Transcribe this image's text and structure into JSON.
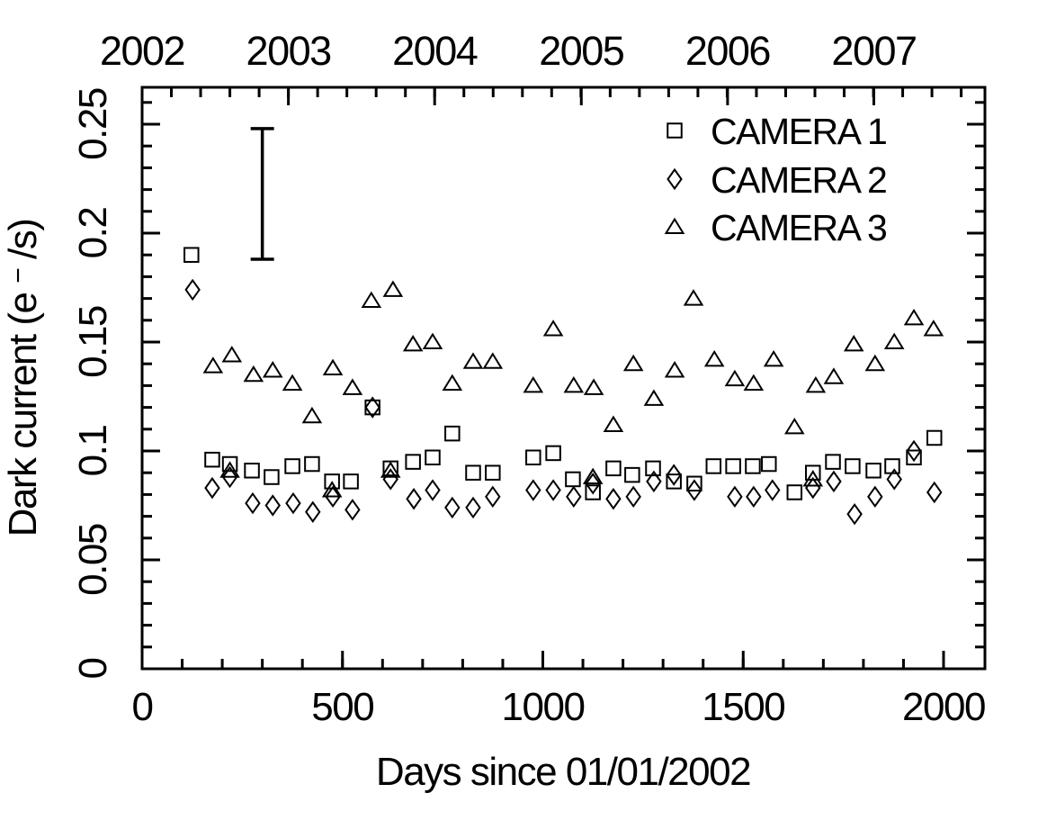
{
  "figure": {
    "background": "#ffffff",
    "foreground": "#000000"
  },
  "chart_data": {
    "type": "scatter",
    "title": "",
    "xlabel": "Days since 01/01/2002",
    "ylabel_prefix": "Dark current (e",
    "ylabel_sup": "−",
    "ylabel_suffix": "/s)",
    "xlim": [
      0,
      2103
    ],
    "ylim": [
      0,
      0.267
    ],
    "grid": false,
    "legend_position": "top-right-inside",
    "x_ticks_major": [
      {
        "value": 0,
        "label": "0"
      },
      {
        "value": 500,
        "label": "500"
      },
      {
        "value": 1000,
        "label": "1000"
      },
      {
        "value": 1500,
        "label": "1500"
      },
      {
        "value": 2000,
        "label": "2000"
      }
    ],
    "x_minor_step": 100,
    "y_ticks_major": [
      {
        "value": 0,
        "label": "0"
      },
      {
        "value": 0.05,
        "label": "0.05"
      },
      {
        "value": 0.1,
        "label": "0.1"
      },
      {
        "value": 0.15,
        "label": "0.15"
      },
      {
        "value": 0.2,
        "label": "0.2"
      },
      {
        "value": 0.25,
        "label": "0.25"
      }
    ],
    "y_minor_step": 0.01,
    "top_axis_years": [
      {
        "label": "2002",
        "day": 0
      },
      {
        "label": "2003",
        "day": 365
      },
      {
        "label": "2004",
        "day": 730
      },
      {
        "label": "2005",
        "day": 1096
      },
      {
        "label": "2006",
        "day": 1461
      },
      {
        "label": "2007",
        "day": 1826
      }
    ],
    "top_minor_step": 73,
    "error_bar": {
      "x_day": 300,
      "y_low": 0.188,
      "y_high": 0.248
    },
    "series": [
      {
        "name": "CAMERA 1",
        "marker": "square",
        "points": [
          [
            123,
            0.19
          ],
          [
            175,
            0.096
          ],
          [
            219,
            0.094
          ],
          [
            274,
            0.091
          ],
          [
            323,
            0.088
          ],
          [
            375,
            0.093
          ],
          [
            424,
            0.094
          ],
          [
            474,
            0.086
          ],
          [
            521,
            0.086
          ],
          [
            575,
            0.12
          ],
          [
            620,
            0.092
          ],
          [
            676,
            0.095
          ],
          [
            725,
            0.097
          ],
          [
            774,
            0.108
          ],
          [
            826,
            0.09
          ],
          [
            875,
            0.09
          ],
          [
            976,
            0.097
          ],
          [
            1026,
            0.099
          ],
          [
            1075,
            0.087
          ],
          [
            1125,
            0.081
          ],
          [
            1176,
            0.092
          ],
          [
            1223,
            0.089
          ],
          [
            1275,
            0.092
          ],
          [
            1327,
            0.086
          ],
          [
            1378,
            0.085
          ],
          [
            1426,
            0.093
          ],
          [
            1475,
            0.093
          ],
          [
            1524,
            0.093
          ],
          [
            1564,
            0.094
          ],
          [
            1628,
            0.081
          ],
          [
            1674,
            0.09
          ],
          [
            1724,
            0.095
          ],
          [
            1773,
            0.093
          ],
          [
            1825,
            0.091
          ],
          [
            1872,
            0.093
          ],
          [
            1926,
            0.097
          ],
          [
            1977,
            0.106
          ]
        ]
      },
      {
        "name": "CAMERA 2",
        "marker": "diamond",
        "points": [
          [
            126,
            0.174
          ],
          [
            175,
            0.083
          ],
          [
            219,
            0.088
          ],
          [
            276,
            0.076
          ],
          [
            326,
            0.075
          ],
          [
            377,
            0.076
          ],
          [
            426,
            0.072
          ],
          [
            476,
            0.079
          ],
          [
            525,
            0.073
          ],
          [
            575,
            0.12
          ],
          [
            620,
            0.087
          ],
          [
            678,
            0.078
          ],
          [
            725,
            0.082
          ],
          [
            774,
            0.074
          ],
          [
            826,
            0.074
          ],
          [
            875,
            0.079
          ],
          [
            976,
            0.082
          ],
          [
            1026,
            0.082
          ],
          [
            1077,
            0.079
          ],
          [
            1125,
            0.085
          ],
          [
            1176,
            0.078
          ],
          [
            1226,
            0.079
          ],
          [
            1277,
            0.086
          ],
          [
            1327,
            0.089
          ],
          [
            1378,
            0.082
          ],
          [
            1479,
            0.079
          ],
          [
            1526,
            0.079
          ],
          [
            1573,
            0.082
          ],
          [
            1674,
            0.083
          ],
          [
            1726,
            0.086
          ],
          [
            1778,
            0.071
          ],
          [
            1829,
            0.079
          ],
          [
            1877,
            0.087
          ],
          [
            1926,
            0.1
          ],
          [
            1977,
            0.081
          ]
        ]
      },
      {
        "name": "CAMERA 3",
        "marker": "triangle",
        "points": [
          [
            177,
            0.139
          ],
          [
            219,
            0.091
          ],
          [
            224,
            0.144
          ],
          [
            278,
            0.135
          ],
          [
            326,
            0.137
          ],
          [
            375,
            0.131
          ],
          [
            424,
            0.116
          ],
          [
            474,
            0.082
          ],
          [
            476,
            0.138
          ],
          [
            525,
            0.129
          ],
          [
            572,
            0.169
          ],
          [
            620,
            0.091
          ],
          [
            626,
            0.174
          ],
          [
            676,
            0.149
          ],
          [
            725,
            0.15
          ],
          [
            774,
            0.131
          ],
          [
            826,
            0.141
          ],
          [
            875,
            0.141
          ],
          [
            976,
            0.13
          ],
          [
            1026,
            0.156
          ],
          [
            1077,
            0.13
          ],
          [
            1125,
            0.088
          ],
          [
            1127,
            0.129
          ],
          [
            1176,
            0.112
          ],
          [
            1226,
            0.14
          ],
          [
            1277,
            0.124
          ],
          [
            1329,
            0.137
          ],
          [
            1376,
            0.17
          ],
          [
            1428,
            0.142
          ],
          [
            1479,
            0.133
          ],
          [
            1526,
            0.131
          ],
          [
            1576,
            0.142
          ],
          [
            1628,
            0.111
          ],
          [
            1674,
            0.087
          ],
          [
            1681,
            0.13
          ],
          [
            1726,
            0.134
          ],
          [
            1776,
            0.149
          ],
          [
            1829,
            0.14
          ],
          [
            1877,
            0.15
          ],
          [
            1926,
            0.161
          ],
          [
            1975,
            0.156
          ]
        ]
      }
    ]
  }
}
